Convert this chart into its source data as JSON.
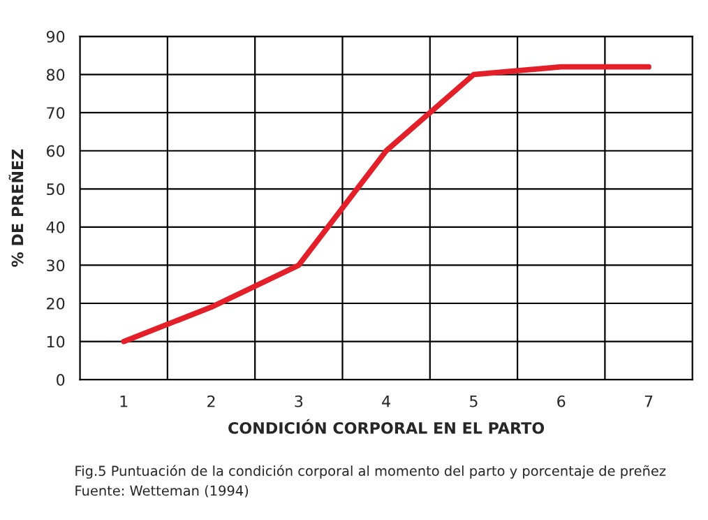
{
  "chart_data": {
    "type": "line",
    "xlabel": "CONDICIÓN CORPORAL EN EL PARTO",
    "ylabel": "% DE PREÑEZ",
    "categories": [
      "1",
      "2",
      "3",
      "4",
      "5",
      "6",
      "7"
    ],
    "series": [
      {
        "color": "#e3202a",
        "values": [
          10,
          19,
          30,
          60,
          80,
          82,
          82
        ]
      }
    ],
    "ylim": [
      0,
      90
    ],
    "yticks": [
      0,
      10,
      20,
      30,
      40,
      50,
      60,
      70,
      80,
      90
    ],
    "grid": true,
    "marker": "none",
    "line_style": "solid",
    "annotations": [
      "Fig.5 Puntuación de la condición corporal al momento del parto y porcentaje de preñez",
      "Fuente: Wetteman (1994)"
    ]
  }
}
